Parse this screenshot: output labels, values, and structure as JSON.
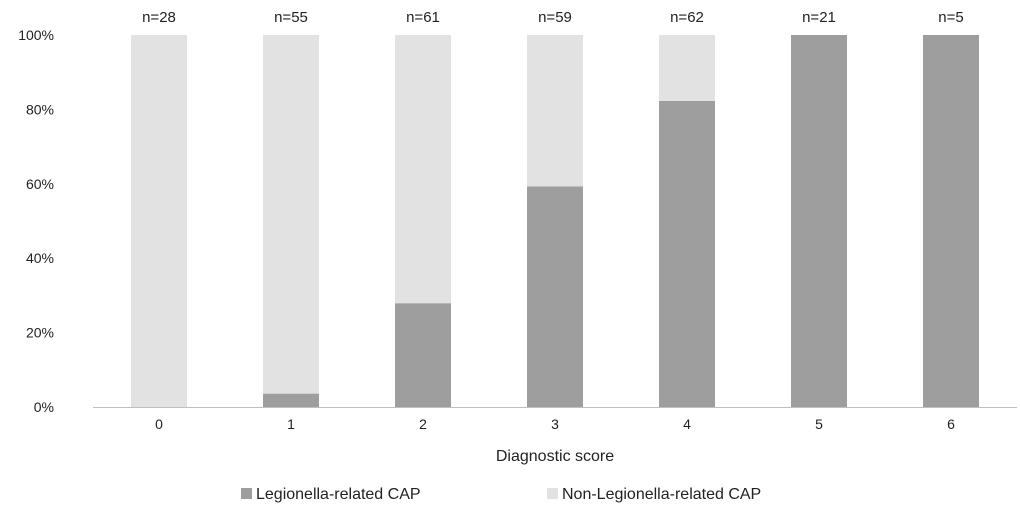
{
  "chart_data": {
    "type": "bar",
    "stacked": true,
    "xlabel": "Diagnostic score",
    "ylabel": "",
    "categories": [
      "0",
      "1",
      "2",
      "3",
      "4",
      "5",
      "6"
    ],
    "ylim": [
      0,
      100
    ],
    "yticks": [
      "0%",
      "20%",
      "40%",
      "60%",
      "80%",
      "100%"
    ],
    "ytick_values": [
      0,
      20,
      40,
      60,
      80,
      100
    ],
    "annotations": [
      "n=28",
      "n=55",
      "n=61",
      "n=59",
      "n=62",
      "n=21",
      "n=5"
    ],
    "series": [
      {
        "name": "Legionella-related CAP",
        "color": "#9e9e9e",
        "values": [
          0,
          3.6,
          27.9,
          59.3,
          82.3,
          100,
          100
        ]
      },
      {
        "name": "Non-Legionella-related CAP",
        "color": "#e2e2e2",
        "values": [
          100,
          96.4,
          72.1,
          40.7,
          17.7,
          0,
          0
        ]
      }
    ],
    "grid": false,
    "legend": "bottom"
  }
}
